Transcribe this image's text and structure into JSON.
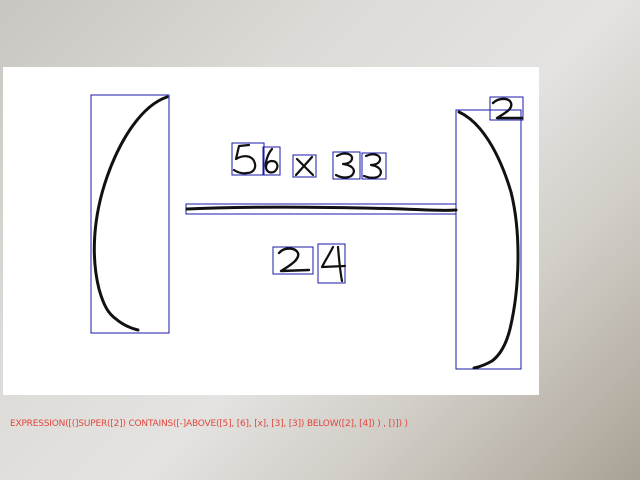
{
  "canvas": {
    "background": "#ffffff",
    "box_color": "#1a1aa8",
    "ink_color": "#111111"
  },
  "symbols": [
    {
      "id": "left-paren",
      "glyph": "("
    },
    {
      "id": "digit-5",
      "glyph": "5"
    },
    {
      "id": "digit-6",
      "glyph": "6"
    },
    {
      "id": "times-x",
      "glyph": "x"
    },
    {
      "id": "digit-3a",
      "glyph": "3"
    },
    {
      "id": "digit-3b",
      "glyph": "3"
    },
    {
      "id": "fraction-bar",
      "glyph": "-"
    },
    {
      "id": "digit-2",
      "glyph": "2"
    },
    {
      "id": "digit-4",
      "glyph": "4"
    },
    {
      "id": "right-paren",
      "glyph": ")"
    },
    {
      "id": "superscript-2",
      "glyph": "2"
    }
  ],
  "status": {
    "expression": "EXPRESSION([(]SUPER([2]) CONTAINS([-]ABOVE([5], [6], [x], [3], [3]) BELOW([2], [4]) ) , [)]) )",
    "color": "#e0473c"
  }
}
